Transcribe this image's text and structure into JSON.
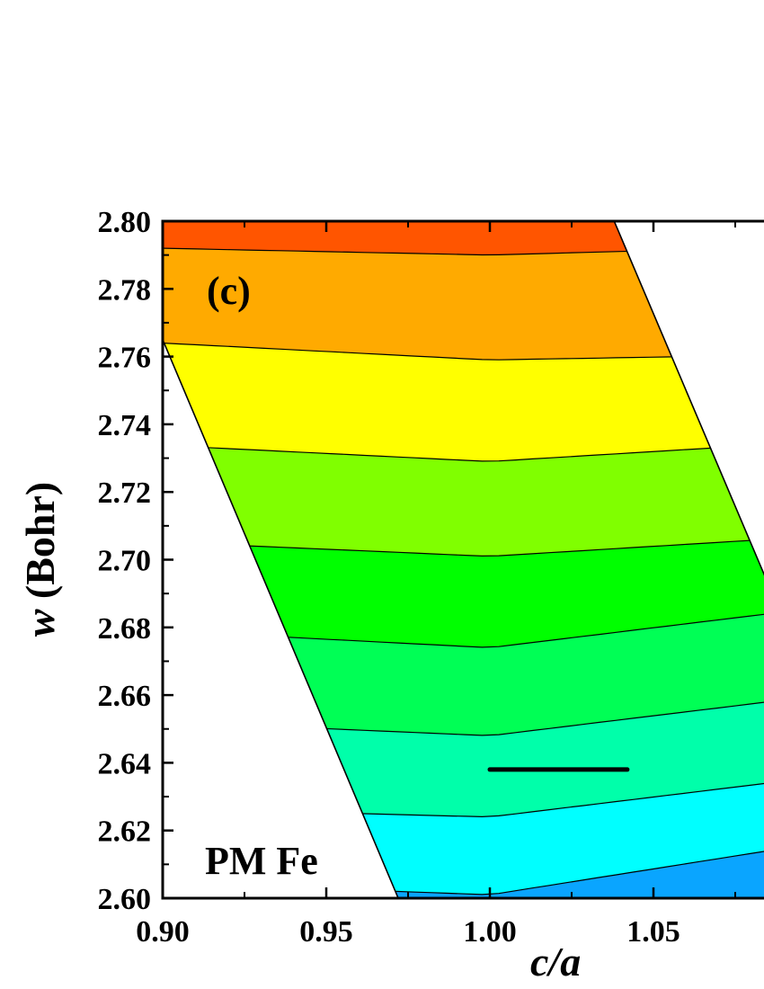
{
  "chart_data": {
    "type": "contour",
    "panel_label": "(c)",
    "annotation": "PM Fe",
    "xlabel": "c/a",
    "ylabel_var": "w",
    "ylabel_unit": " (Bohr)",
    "xlim": [
      0.9,
      1.085
    ],
    "ylim": [
      2.6,
      2.8
    ],
    "x_ticks": [
      "0.90",
      "0.95",
      "1.00",
      "1.05"
    ],
    "y_ticks": [
      "2.60",
      "2.62",
      "2.64",
      "2.66",
      "2.68",
      "2.70",
      "2.72",
      "2.74",
      "2.76",
      "2.78",
      "2.80"
    ],
    "colors": {
      "band_colors": [
        "#0aa5ff",
        "#00ffff",
        "#00ffaa",
        "#00ff55",
        "#00ff00",
        "#80ff00",
        "#ffff00",
        "#ffaa00",
        "#ff5500"
      ],
      "line": "#000000"
    },
    "domain_boundary": {
      "left": [
        [
          0.9,
          2.765
        ],
        [
          0.972,
          2.6
        ]
      ],
      "right": [
        [
          1.038,
          2.8
        ],
        [
          1.085,
          2.693
        ]
      ]
    },
    "contour_levels": [
      {
        "x": [
          0.972,
          1.0,
          1.085
        ],
        "y": [
          2.602,
          2.601,
          2.614
        ]
      },
      {
        "x": [
          0.96,
          1.0,
          1.085
        ],
        "y": [
          2.625,
          2.624,
          2.634
        ]
      },
      {
        "x": [
          0.952,
          1.0,
          1.085
        ],
        "y": [
          2.65,
          2.648,
          2.658
        ]
      },
      {
        "x": [
          0.94,
          1.0,
          1.085
        ],
        "y": [
          2.677,
          2.674,
          2.684
        ]
      },
      {
        "x": [
          0.928,
          1.0,
          1.085
        ],
        "y": [
          2.704,
          2.701,
          2.706
        ]
      },
      {
        "x": [
          0.916,
          1.0,
          1.085
        ],
        "y": [
          2.733,
          2.729,
          2.734
        ]
      },
      {
        "x": [
          0.9,
          1.0,
          1.06
        ],
        "y": [
          2.764,
          2.759,
          2.76
        ]
      },
      {
        "x": [
          0.9,
          1.0,
          1.038
        ],
        "y": [
          2.792,
          2.79,
          2.791
        ]
      }
    ],
    "minimum_line": {
      "x": [
        1.0,
        1.042
      ],
      "y": [
        2.638,
        2.638
      ]
    }
  }
}
